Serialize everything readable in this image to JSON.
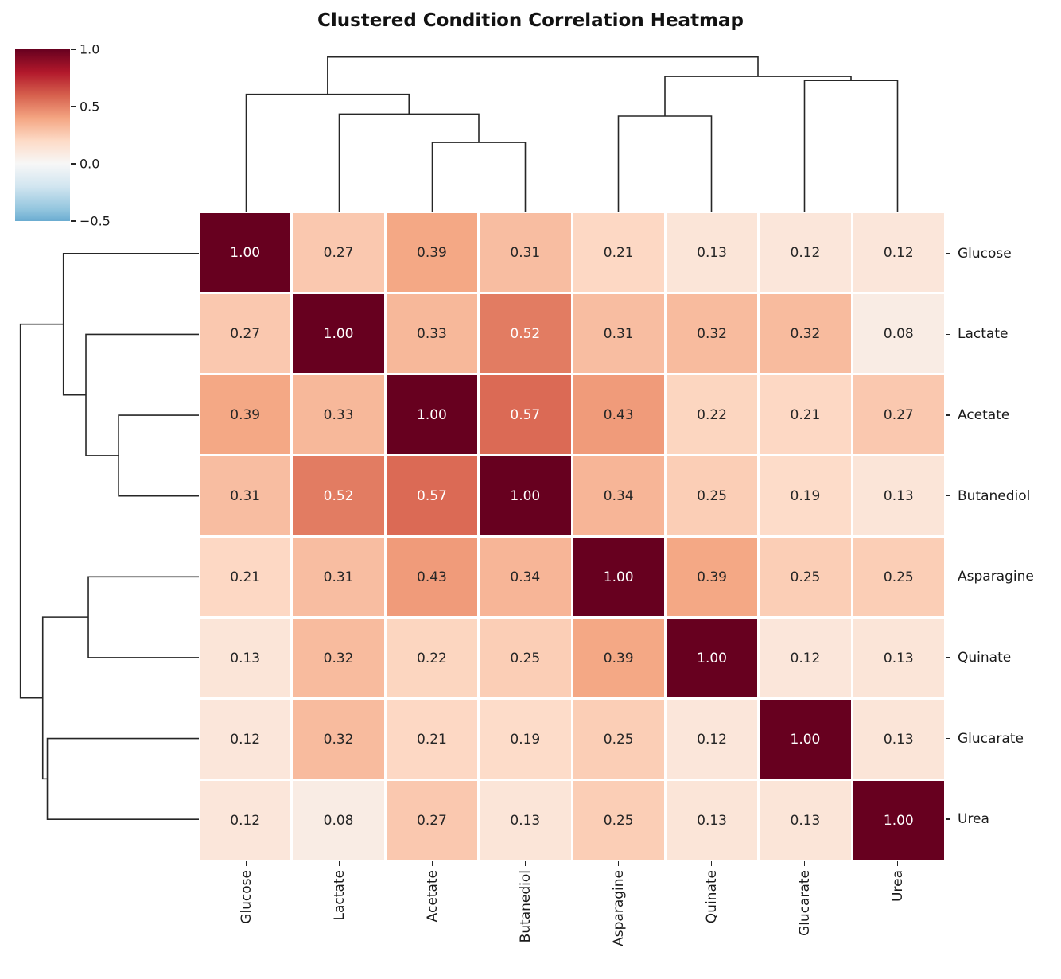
{
  "chart_data": {
    "type": "heatmap",
    "title": "Clustered Condition Correlation Heatmap",
    "labels": [
      "Glucose",
      "Lactate",
      "Acetate",
      "Butanediol",
      "Asparagine",
      "Quinate",
      "Glucarate",
      "Urea"
    ],
    "matrix": [
      [
        1.0,
        0.27,
        0.39,
        0.31,
        0.21,
        0.13,
        0.12,
        0.12
      ],
      [
        0.27,
        1.0,
        0.33,
        0.52,
        0.31,
        0.32,
        0.32,
        0.08
      ],
      [
        0.39,
        0.33,
        1.0,
        0.57,
        0.43,
        0.22,
        0.21,
        0.27
      ],
      [
        0.31,
        0.52,
        0.57,
        1.0,
        0.34,
        0.25,
        0.19,
        0.13
      ],
      [
        0.21,
        0.31,
        0.43,
        0.34,
        1.0,
        0.39,
        0.25,
        0.25
      ],
      [
        0.13,
        0.32,
        0.22,
        0.25,
        0.39,
        1.0,
        0.12,
        0.13
      ],
      [
        0.12,
        0.32,
        0.21,
        0.19,
        0.25,
        0.12,
        1.0,
        0.13
      ],
      [
        0.12,
        0.08,
        0.27,
        0.13,
        0.25,
        0.13,
        0.13,
        1.0
      ]
    ],
    "annotation_decimals": 2,
    "vmin": -0.5,
    "vmax": 1.0,
    "grid": true,
    "legend_position": "top-left colorbar",
    "colorbar": {
      "tick_labels": [
        "1.0",
        "0.5",
        "0.0",
        "−0.5"
      ],
      "tick_values": [
        1.0,
        0.5,
        0.0,
        -0.5
      ]
    },
    "colormap": {
      "name": "RdBu_r",
      "stops": [
        {
          "v": -1.0,
          "color": "#053061"
        },
        {
          "v": -0.8,
          "color": "#2166ac"
        },
        {
          "v": -0.6,
          "color": "#4393c3"
        },
        {
          "v": -0.4,
          "color": "#92c5de"
        },
        {
          "v": -0.2,
          "color": "#d1e5f0"
        },
        {
          "v": 0.0,
          "color": "#f7f7f7"
        },
        {
          "v": 0.2,
          "color": "#fddbc7"
        },
        {
          "v": 0.4,
          "color": "#f4a582"
        },
        {
          "v": 0.6,
          "color": "#d6604d"
        },
        {
          "v": 0.8,
          "color": "#b2182b"
        },
        {
          "v": 1.0,
          "color": "#67001f"
        }
      ]
    },
    "dendrogram": {
      "leaf_order": [
        "Glucose",
        "Lactate",
        "Acetate",
        "Butanediol",
        "Asparagine",
        "Quinate",
        "Glucarate",
        "Urea"
      ],
      "merges": [
        {
          "children": [
            2,
            3
          ],
          "height": 0.435
        },
        {
          "children": [
            1,
            8
          ],
          "height": 0.612
        },
        {
          "children": [
            0,
            9
          ],
          "height": 0.734
        },
        {
          "children": [
            4,
            5
          ],
          "height": 0.599
        },
        {
          "children": [
            6,
            7
          ],
          "height": 0.821
        },
        {
          "children": [
            11,
            12
          ],
          "height": 0.846
        },
        {
          "children": [
            10,
            13
          ],
          "height": 0.967
        }
      ]
    },
    "colors": {
      "annotation_dark": "#262626",
      "annotation_light": "#ffffff",
      "dendrogram_line": "#262626",
      "gridline": "#ffffff",
      "max_cell": "#67001f"
    }
  }
}
